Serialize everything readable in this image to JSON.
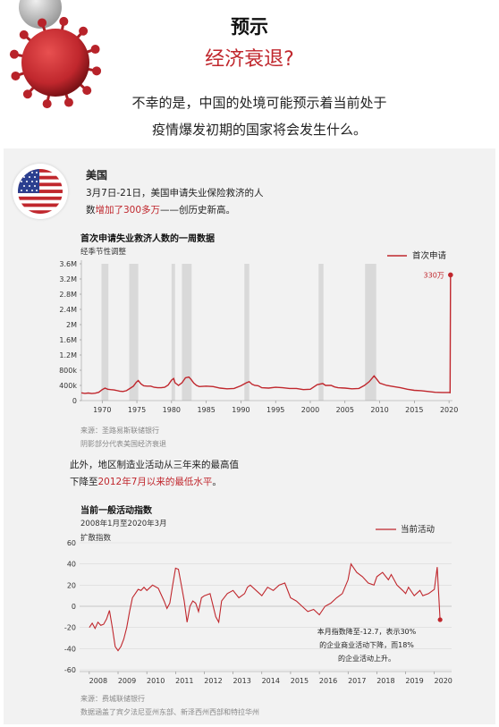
{
  "header": {
    "title": "预示",
    "subtitle": "经济衰退?",
    "desc_line1": "不幸的是，中国的处境可能预示着当前处于",
    "desc_line2": "疫情爆发初期的国家将会发生什么。"
  },
  "us": {
    "country": "美国",
    "text1": "3月7日-21日，美国申请失业保险救济的人",
    "text2a": "数",
    "text2b": "增加了300多万",
    "text2c": "——创历史新高。"
  },
  "mid_text": {
    "line1": "此外，地区制造业活动从三年来的最高值",
    "line2a": "下降至",
    "line2b": "2012年7月以来的最低水平",
    "line2c": "。"
  },
  "chart1_source": {
    "line1": "来源：圣路易斯联储银行",
    "line2": "阴影部分代表美国经济衰退"
  },
  "chart2_source": {
    "line1": "来源：费城联储银行",
    "line2": "数据涵盖了宾夕法尼亚州东部、新泽西州西部和特拉华州"
  },
  "colors": {
    "accent": "#c0272d",
    "recession_shade": "#d0d0d0",
    "panel": "#f2f2f2"
  },
  "icons": {
    "virus": "virus-icon",
    "flag": "us-flag-icon"
  },
  "chart_data": [
    {
      "type": "line",
      "title": "首次申请失业救济人数的一周数据",
      "subtitle": "经季节性调整",
      "legend": "首次申请",
      "legend_position": "top-right",
      "annotation": "330万",
      "y_ticks": [
        "0",
        "400k",
        "800k",
        "1.2M",
        "1.6M",
        "2M",
        "2.4M",
        "2.8M",
        "3.2M",
        "3.6M"
      ],
      "y_tick_values": [
        0,
        400000,
        800000,
        1200000,
        1600000,
        2000000,
        2400000,
        2800000,
        3200000,
        3600000
      ],
      "x_ticks": [
        "1970",
        "1975",
        "1980",
        "1985",
        "1990",
        "1995",
        "2000",
        "2005",
        "2010",
        "2015",
        "2020"
      ],
      "x_tick_values": [
        1970,
        1975,
        1980,
        1985,
        1990,
        1995,
        2000,
        2005,
        2010,
        2015,
        2020
      ],
      "xlim": [
        1967,
        2020.5
      ],
      "ylim": [
        0,
        3600000
      ],
      "recessions": [
        [
          1969.9,
          1970.9
        ],
        [
          1973.9,
          1975.2
        ],
        [
          1980.0,
          1980.5
        ],
        [
          1981.5,
          1982.9
        ],
        [
          1990.5,
          1991.2
        ],
        [
          2001.2,
          2001.9
        ],
        [
          2007.9,
          2009.5
        ]
      ],
      "series": [
        {
          "name": "首次申请",
          "x": [
            1967,
            1967.5,
            1968,
            1968.5,
            1969,
            1969.5,
            1970,
            1970.4,
            1970.8,
            1971.2,
            1971.7,
            1972,
            1972.5,
            1973,
            1973.5,
            1974,
            1974.5,
            1974.9,
            1975.2,
            1975.6,
            1976,
            1976.5,
            1977,
            1977.5,
            1978,
            1978.5,
            1979,
            1979.5,
            1980,
            1980.3,
            1980.5,
            1981,
            1981.5,
            1982,
            1982.5,
            1982.8,
            1983.2,
            1983.6,
            1984,
            1985,
            1986,
            1987,
            1988,
            1989,
            1990,
            1990.8,
            1991.2,
            1991.6,
            1992,
            1992.5,
            1993,
            1994,
            1995,
            1996,
            1997,
            1998,
            1999,
            2000,
            2001,
            2001.8,
            2002.2,
            2003,
            2003.5,
            2004,
            2005,
            2006,
            2007,
            2007.8,
            2008.5,
            2009.2,
            2009.6,
            2010,
            2011,
            2012,
            2013,
            2014,
            2015,
            2016,
            2017,
            2018,
            2019,
            2020.05,
            2020.15,
            2020.22
          ],
          "values": [
            205000,
            190000,
            200000,
            185000,
            195000,
            220000,
            290000,
            330000,
            300000,
            290000,
            280000,
            270000,
            250000,
            240000,
            260000,
            320000,
            380000,
            480000,
            530000,
            440000,
            390000,
            380000,
            380000,
            350000,
            340000,
            340000,
            350000,
            410000,
            540000,
            580000,
            470000,
            400000,
            470000,
            600000,
            620000,
            560000,
            460000,
            400000,
            370000,
            380000,
            370000,
            330000,
            310000,
            320000,
            390000,
            470000,
            500000,
            430000,
            400000,
            390000,
            340000,
            330000,
            350000,
            340000,
            320000,
            320000,
            290000,
            300000,
            420000,
            450000,
            400000,
            400000,
            360000,
            340000,
            330000,
            310000,
            320000,
            400000,
            500000,
            650000,
            560000,
            460000,
            400000,
            370000,
            340000,
            300000,
            270000,
            260000,
            240000,
            220000,
            215000,
            215000,
            210000,
            3307000
          ]
        }
      ]
    },
    {
      "type": "line",
      "title": "当前一般活动指数",
      "subtitle": "2008年1月至2020年3月",
      "ylabel": "扩散指数",
      "legend": "当前活动",
      "legend_position": "top-right",
      "annotation": "本月指数降至-12.7，表示30%的企业商业活动下降，而18%的企业活动上升。",
      "annotation_lines": [
        "本月指数降至-12.7，表示30%",
        "的企业商业活动下降，而18%",
        "的企业活动上升。"
      ],
      "y_ticks": [
        "-60",
        "-40",
        "-20",
        "0",
        "20",
        "40",
        "60"
      ],
      "y_tick_values": [
        -60,
        -40,
        -20,
        0,
        20,
        40,
        60
      ],
      "x_ticks": [
        "2008",
        "2009",
        "2010",
        "2011",
        "2012",
        "2013",
        "2014",
        "2015",
        "2016",
        "2017",
        "2018",
        "2019",
        "2020"
      ],
      "x_tick_values": [
        2008,
        2009,
        2010,
        2011,
        2012,
        2013,
        2014,
        2015,
        2016,
        2017,
        2018,
        2019,
        2020
      ],
      "xlim": [
        2007.6,
        2020.6
      ],
      "ylim": [
        -60,
        60
      ],
      "series": [
        {
          "name": "当前活动",
          "x": [
            2008.0,
            2008.1,
            2008.2,
            2008.3,
            2008.4,
            2008.5,
            2008.6,
            2008.7,
            2008.8,
            2008.9,
            2009.0,
            2009.1,
            2009.2,
            2009.3,
            2009.4,
            2009.5,
            2009.6,
            2009.7,
            2009.8,
            2009.9,
            2010.0,
            2010.2,
            2010.4,
            2010.6,
            2010.7,
            2010.8,
            2010.9,
            2011.0,
            2011.1,
            2011.2,
            2011.3,
            2011.4,
            2011.5,
            2011.6,
            2011.7,
            2011.8,
            2011.9,
            2012.0,
            2012.2,
            2012.4,
            2012.5,
            2012.6,
            2012.8,
            2013.0,
            2013.2,
            2013.3,
            2013.4,
            2013.5,
            2013.6,
            2013.8,
            2014.0,
            2014.2,
            2014.4,
            2014.6,
            2014.8,
            2015.0,
            2015.2,
            2015.4,
            2015.6,
            2015.8,
            2016.0,
            2016.2,
            2016.4,
            2016.6,
            2016.8,
            2017.0,
            2017.1,
            2017.3,
            2017.5,
            2017.7,
            2017.9,
            2018.0,
            2018.2,
            2018.4,
            2018.5,
            2018.7,
            2018.9,
            2019.0,
            2019.1,
            2019.3,
            2019.5,
            2019.6,
            2019.8,
            2020.0,
            2020.1,
            2020.2
          ],
          "values": [
            -20,
            -16,
            -21,
            -15,
            -18,
            -17,
            -12,
            -4,
            -20,
            -38,
            -42,
            -38,
            -31,
            -20,
            -5,
            8,
            12,
            16,
            15,
            18,
            15,
            20,
            17,
            5,
            -2,
            3,
            20,
            36,
            35,
            20,
            5,
            -15,
            0,
            5,
            3,
            -5,
            8,
            10,
            12,
            -10,
            -15,
            5,
            12,
            15,
            8,
            10,
            12,
            18,
            20,
            15,
            10,
            18,
            15,
            20,
            22,
            8,
            5,
            0,
            -5,
            -3,
            -8,
            0,
            3,
            8,
            12,
            25,
            40,
            32,
            28,
            22,
            20,
            28,
            32,
            25,
            30,
            20,
            15,
            12,
            18,
            10,
            15,
            10,
            12,
            16,
            37,
            -12.7
          ]
        }
      ]
    }
  ]
}
